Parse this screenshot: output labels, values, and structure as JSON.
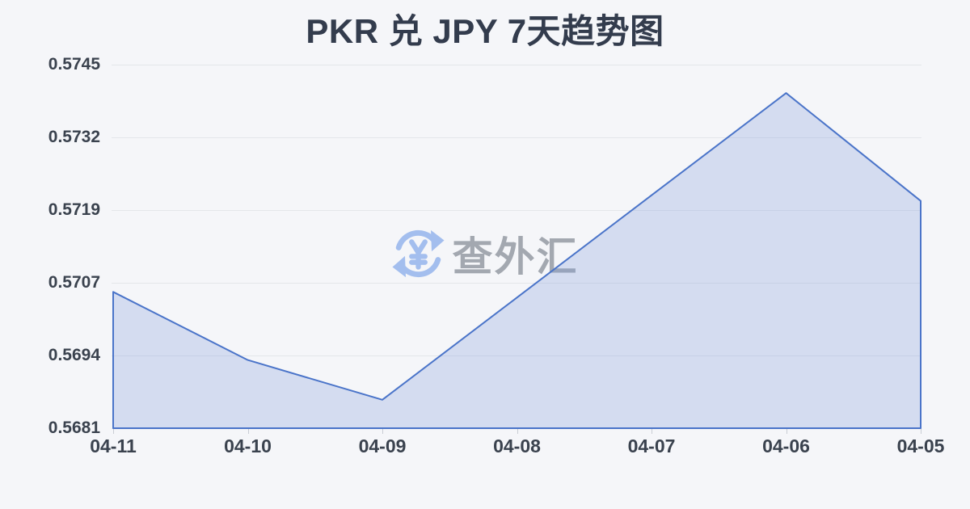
{
  "page": {
    "title": "PKR 兑 JPY 7天趋势图"
  },
  "watermark": {
    "brand": "查外汇",
    "icon": "yen-exchange-refresh-icon"
  },
  "colors": {
    "background": "#f5f6f9",
    "title": "#333c4d",
    "axis_label": "#3a424e",
    "gridline": "#e4e6ea",
    "tick_mark": "#c9cdd4",
    "line": "#4a74c9",
    "fill": "rgba(125,155,220,0.28)",
    "watermark_text": "rgba(148,154,163,0.85)",
    "watermark_icon": "#a3beee"
  },
  "chart_data": {
    "type": "area",
    "title": "PKR 兑 JPY 7天趋势图",
    "categories": [
      "04-11",
      "04-10",
      "04-09",
      "04-08",
      "04-07",
      "04-06",
      "04-05"
    ],
    "values": [
      0.5705,
      0.5693,
      0.5686,
      0.5704,
      0.5722,
      0.574,
      0.5721
    ],
    "series_name": "PKR/JPY",
    "xlabel": "",
    "ylabel": "",
    "ylim": [
      0.5681,
      0.5745
    ],
    "ytick_labels": [
      "0.5745",
      "0.5732",
      "0.5719",
      "0.5707",
      "0.5694",
      "0.5681"
    ],
    "grid": true,
    "legend": false,
    "line_color": "#4a74c9",
    "fill_color": "rgba(125,155,220,0.28)"
  }
}
